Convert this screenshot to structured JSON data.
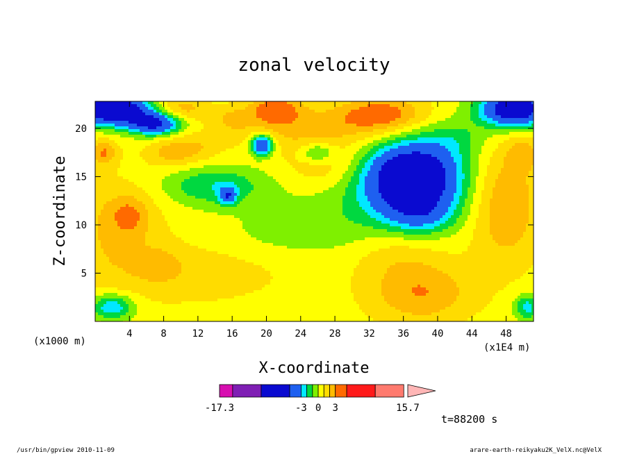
{
  "chart_data": {
    "type": "heatmap",
    "title": "zonal velocity",
    "xlabel": "X-coordinate",
    "ylabel": "Z-coordinate",
    "xunit_left": "(x1000 m)",
    "xunit_right": "(x1E4 m)",
    "xlim": [
      0,
      51.2
    ],
    "ylim": [
      0,
      22.8
    ],
    "xticks": [
      4,
      8,
      12,
      16,
      20,
      24,
      28,
      32,
      36,
      40,
      44,
      48
    ],
    "yticks": [
      5,
      10,
      15,
      20
    ],
    "colorbar": {
      "levels": [
        -17.3,
        -15,
        -10,
        -5,
        -3,
        -2,
        -1,
        0,
        1,
        2,
        3,
        5,
        10,
        15,
        15.7
      ],
      "colors": [
        "#d70fb0",
        "#7f1fb4",
        "#0a0ad0",
        "#1e60f0",
        "#00e8ff",
        "#00d840",
        "#7ff000",
        "#ffff00",
        "#ffdc00",
        "#ffbb00",
        "#ff6a00",
        "#ff1a1a",
        "#ff7a6e",
        "#ffb6b6"
      ],
      "tick_labels": [
        "-17.3",
        "-3",
        "0",
        "3",
        "15.7"
      ],
      "tick_values": [
        -17.3,
        -3,
        0,
        3,
        15.7
      ]
    },
    "field": {
      "background": 0.5,
      "blobs": [
        {
          "x": 10,
          "y": 5,
          "sx": 12,
          "sy": 3.2,
          "a": 1.2
        },
        {
          "x": 2,
          "y": 10,
          "sx": 6,
          "sy": 5,
          "a": 1.5
        },
        {
          "x": 4,
          "y": 11,
          "sx": 2.2,
          "sy": 2,
          "a": 1.8
        },
        {
          "x": 7.5,
          "y": 6,
          "sx": 2.5,
          "sy": 1.8,
          "a": 0.8
        },
        {
          "x": 38,
          "y": 3,
          "sx": 6,
          "sy": 3.2,
          "a": 2.5
        },
        {
          "x": 48,
          "y": 12,
          "sx": 4,
          "sy": 6,
          "a": 2.5
        },
        {
          "x": 50,
          "y": 17.5,
          "sx": 2,
          "sy": 1.8,
          "a": 1.5
        },
        {
          "x": 27,
          "y": 16,
          "sx": 5,
          "sy": 2.3,
          "a": 1.2
        },
        {
          "x": 35,
          "y": 7,
          "sx": 5,
          "sy": 2.5,
          "a": 0.9
        },
        {
          "x": 9,
          "y": 17.5,
          "sx": 3,
          "sy": 1.5,
          "a": 1.8
        },
        {
          "x": 12,
          "y": 18,
          "sx": 3,
          "sy": 1.5,
          "a": 1.0
        },
        {
          "x": 1,
          "y": 17.5,
          "sx": 1.5,
          "sy": 1.3,
          "a": 2.5
        },
        {
          "x": 25,
          "y": 20,
          "sx": 10,
          "sy": 2.3,
          "a": 1.8
        },
        {
          "x": 21,
          "y": 22,
          "sx": 3,
          "sy": 1.5,
          "a": 3.0
        },
        {
          "x": 33.5,
          "y": 21.5,
          "sx": 5,
          "sy": 1.8,
          "a": 3.0
        },
        {
          "x": 10,
          "y": 22,
          "sx": 3,
          "sy": 1.2,
          "a": 2.0
        },
        {
          "x": 16,
          "y": 21,
          "sx": 2,
          "sy": 1.2,
          "a": 1.2
        },
        {
          "x": 2,
          "y": 1.5,
          "sx": 2.5,
          "sy": 1.3,
          "a": -3.5
        },
        {
          "x": 50.5,
          "y": 1.5,
          "sx": 1.5,
          "sy": 1.3,
          "a": -3.0
        },
        {
          "x": 24,
          "y": 9,
          "sx": 10,
          "sy": 2.5,
          "a": -0.9
        },
        {
          "x": 33,
          "y": 12,
          "sx": 10,
          "sy": 3,
          "a": -1.1
        },
        {
          "x": 37,
          "y": 15,
          "sx": 5.5,
          "sy": 3.5,
          "a": -9
        },
        {
          "x": 38,
          "y": 11,
          "sx": 4,
          "sy": 2,
          "a": -2.5
        },
        {
          "x": 14,
          "y": 14,
          "sx": 6,
          "sy": 2,
          "a": -2.5
        },
        {
          "x": 15.5,
          "y": 13,
          "sx": 1,
          "sy": 0.9,
          "a": -4
        },
        {
          "x": 19.5,
          "y": 18.3,
          "sx": 1.3,
          "sy": 1.1,
          "a": -6
        },
        {
          "x": 7,
          "y": 20.5,
          "sx": 3,
          "sy": 1.2,
          "a": -6
        },
        {
          "x": 2,
          "y": 22,
          "sx": 4,
          "sy": 1.6,
          "a": -9
        },
        {
          "x": 49,
          "y": 22,
          "sx": 4,
          "sy": 1.8,
          "a": -8
        },
        {
          "x": 26,
          "y": 17.5,
          "sx": 2,
          "sy": 1,
          "a": -2.5
        },
        {
          "x": 42,
          "y": 19,
          "sx": 4,
          "sy": 2,
          "a": -1.5
        }
      ]
    }
  },
  "time_label": "t=88200 s",
  "footer": {
    "left": "/usr/bin/gpview  2010-11-09",
    "right": "arare-earth-reikyaku2K_VelX.nc@VelX"
  }
}
